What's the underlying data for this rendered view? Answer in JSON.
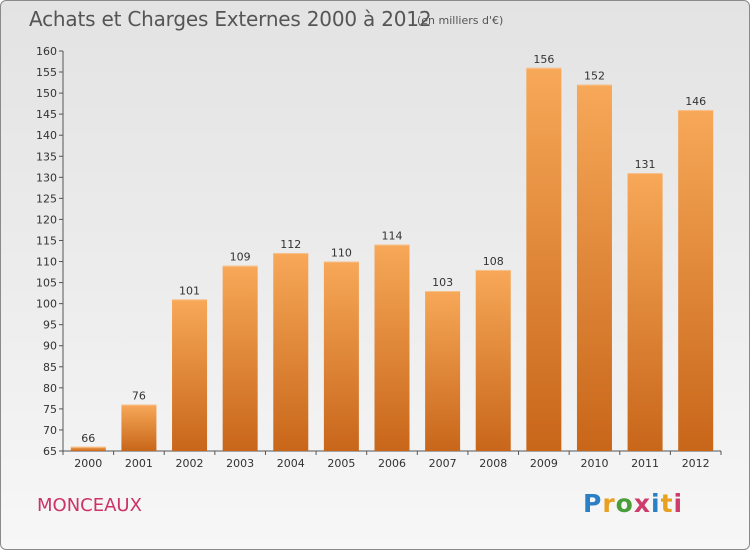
{
  "header": {
    "title": "Achats et Charges Externes 2000 à 2012",
    "unit": "(en milliers d'€)"
  },
  "footer": {
    "place": "MONCEAUX",
    "logo": "Proxiti"
  },
  "colors": {
    "bar_top": "#f7a858",
    "bar_bottom": "#c8661a",
    "place_text": "#cc3366"
  },
  "chart_data": {
    "type": "bar",
    "title": "Achats et Charges Externes 2000 à 2012",
    "xlabel": "",
    "ylabel": "",
    "categories": [
      "2000",
      "2001",
      "2002",
      "2003",
      "2004",
      "2005",
      "2006",
      "2007",
      "2008",
      "2009",
      "2010",
      "2011",
      "2012"
    ],
    "values": [
      66,
      76,
      101,
      109,
      112,
      110,
      114,
      103,
      108,
      156,
      152,
      131,
      146
    ],
    "ylim": [
      65,
      160
    ],
    "yticks": [
      65,
      70,
      75,
      80,
      85,
      90,
      95,
      100,
      105,
      110,
      115,
      120,
      125,
      130,
      135,
      140,
      145,
      150,
      155,
      160
    ],
    "grid": false,
    "legend": "none"
  }
}
